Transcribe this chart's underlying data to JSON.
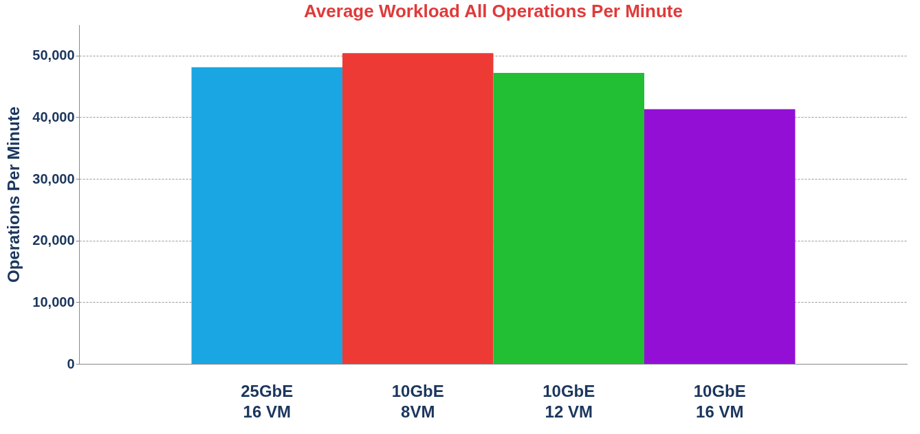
{
  "chart_data": {
    "type": "bar",
    "title": "Average Workload All Operations Per Minute",
    "ylabel": "Operations Per Minute",
    "categories": [
      "25GbE\n16 VM",
      "10GbE\n8VM",
      "10GbE\n12 VM",
      "10GbE\n16 VM"
    ],
    "values": [
      48100,
      50400,
      47200,
      41300
    ],
    "colors": [
      "#1aa6e2",
      "#ee3a35",
      "#22bf34",
      "#930fd6"
    ],
    "ylim": [
      0,
      55000
    ],
    "yticks": [
      0,
      {
        "value": 10000,
        "label": "10,000"
      },
      {
        "value": 20000,
        "label": "20,000"
      },
      {
        "value": 30000,
        "label": "30,000"
      },
      {
        "value": 40000,
        "label": "40,000"
      },
      {
        "value": 50000,
        "label": "50,000"
      }
    ],
    "grid": "y",
    "legend": false
  }
}
